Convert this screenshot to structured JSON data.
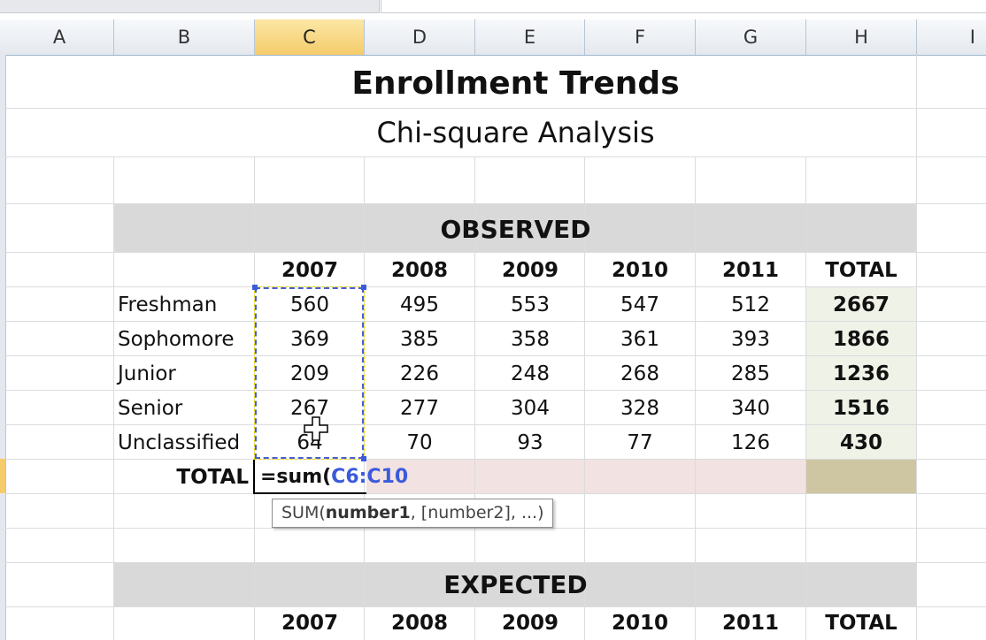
{
  "columns": [
    "A",
    "B",
    "C",
    "D",
    "E",
    "F",
    "G",
    "H",
    "I"
  ],
  "active_column": "C",
  "sheet": {
    "title": "Enrollment Trends",
    "subtitle": "Chi-square Analysis",
    "observed": {
      "header": "OBSERVED",
      "years": [
        "2007",
        "2008",
        "2009",
        "2010",
        "2011"
      ],
      "total_label": "TOTAL",
      "rows": [
        {
          "label": "Freshman",
          "values": [
            "560",
            "495",
            "553",
            "547",
            "512"
          ],
          "total": "2667"
        },
        {
          "label": "Sophomore",
          "values": [
            "369",
            "385",
            "358",
            "361",
            "393"
          ],
          "total": "1866"
        },
        {
          "label": "Junior",
          "values": [
            "209",
            "226",
            "248",
            "268",
            "285"
          ],
          "total": "1236"
        },
        {
          "label": "Senior",
          "values": [
            "267",
            "277",
            "304",
            "328",
            "340"
          ],
          "total": "1516"
        },
        {
          "label": "Unclassified",
          "values": [
            "64",
            "70",
            "93",
            "77",
            "126"
          ],
          "total": "430"
        }
      ],
      "total_row_label": "TOTAL",
      "editing_formula_fn": "=sum(",
      "editing_formula_ref": "C6:C10"
    },
    "tooltip": {
      "fn": "SUM(",
      "arg1": "number1",
      "rest": ", [number2], ...)"
    },
    "expected": {
      "header": "EXPECTED",
      "years": [
        "2007",
        "2008",
        "2009",
        "2010",
        "2011"
      ],
      "total_label": "TOTAL"
    }
  },
  "colors": {
    "section_band": "#d9d9d9",
    "total_column": "#eff2e7",
    "edit_row": "#f3e2e2",
    "total_cell": "#cec6a2",
    "selection": "#3b5bdc",
    "active_header": "#f5cc6a"
  }
}
